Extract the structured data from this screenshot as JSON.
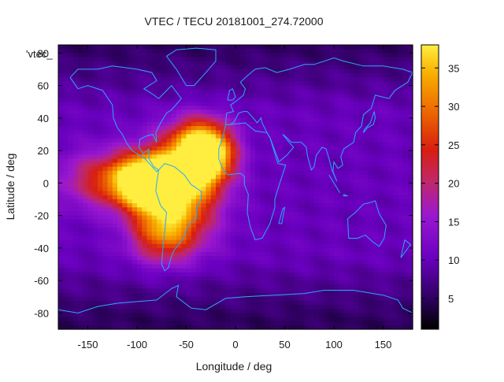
{
  "chart_data": {
    "type": "heatmap",
    "title": "VTEC / TECU 20181001_274.72000",
    "xlabel": "Longitude / deg",
    "ylabel": "Latitude / deg",
    "xlim": [
      -180,
      180
    ],
    "ylim": [
      -90,
      85
    ],
    "xticks": [
      -150,
      -100,
      -50,
      0,
      50,
      100,
      150
    ],
    "yticks": [
      -80,
      -60,
      -40,
      -20,
      0,
      20,
      40,
      60,
      80
    ],
    "colorbar": {
      "range": [
        1,
        38
      ],
      "ticks": [
        5,
        10,
        15,
        20,
        25,
        30,
        35
      ]
    },
    "stray_label": "'vtec_",
    "grid": false,
    "colormap": [
      "#000000",
      "#2a0058",
      "#6a00c0",
      "#9a18d0",
      "#c0286a",
      "#d81e10",
      "#ee6a00",
      "#f8b000",
      "#ffee40"
    ],
    "peaks": [
      {
        "lon": -28,
        "lat": 17,
        "vtec": 38,
        "sx": 18,
        "sy": 11
      },
      {
        "lon": -90,
        "lat": 0,
        "vtec": 35,
        "sx": 22,
        "sy": 11
      },
      {
        "lon": -55,
        "lat": 5,
        "vtec": 32,
        "sx": 28,
        "sy": 14
      },
      {
        "lon": -120,
        "lat": 2,
        "vtec": 26,
        "sx": 38,
        "sy": 12
      },
      {
        "lon": -60,
        "lat": -20,
        "vtec": 26,
        "sx": 28,
        "sy": 16
      },
      {
        "lon": -75,
        "lat": -32,
        "vtec": 22,
        "sx": 22,
        "sy": 12
      },
      {
        "lon": -40,
        "lat": 28,
        "vtec": 24,
        "sx": 22,
        "sy": 10
      }
    ],
    "background_vtec": 10,
    "polar_minimum_vtec": 5
  }
}
